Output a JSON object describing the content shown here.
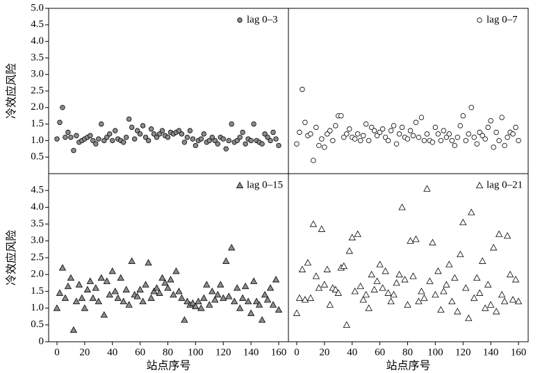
{
  "chart_data": [
    {
      "type": "scatter",
      "ylabel": "冷效应风险",
      "marker": "circle",
      "series": [
        {
          "name": "lag 0–3",
          "color": "#8c8c8c",
          "x": [
            0,
            2,
            4,
            6,
            8,
            10,
            12,
            14,
            16,
            18,
            20,
            22,
            24,
            26,
            28,
            30,
            32,
            34,
            36,
            38,
            40,
            42,
            44,
            46,
            48,
            50,
            52,
            54,
            56,
            58,
            60,
            62,
            64,
            66,
            68,
            70,
            72,
            74,
            76,
            78,
            80,
            82,
            84,
            86,
            88,
            90,
            92,
            94,
            96,
            98,
            100,
            102,
            104,
            106,
            108,
            110,
            112,
            114,
            116,
            118,
            120,
            122,
            124,
            126,
            128,
            130,
            132,
            134,
            136,
            138,
            140,
            142,
            144,
            146,
            148,
            150,
            152,
            154,
            156,
            158,
            160
          ],
          "values": [
            1.05,
            1.55,
            2.0,
            1.1,
            1.25,
            1.1,
            0.7,
            1.15,
            0.95,
            1.0,
            1.05,
            1.1,
            1.15,
            1.0,
            0.9,
            1.05,
            1.5,
            1.0,
            1.1,
            1.2,
            1.0,
            1.3,
            1.05,
            1.0,
            0.95,
            1.1,
            1.65,
            1.4,
            1.05,
            1.3,
            1.2,
            1.45,
            1.1,
            1.0,
            1.35,
            1.2,
            1.1,
            1.2,
            1.3,
            1.15,
            1.1,
            1.25,
            1.2,
            1.25,
            1.3,
            1.2,
            0.95,
            1.1,
            1.3,
            1.05,
            0.85,
            1.0,
            1.05,
            1.2,
            0.95,
            1.0,
            1.1,
            1.0,
            0.9,
            1.1,
            1.05,
            0.75,
            1.0,
            1.5,
            0.95,
            1.0,
            1.1,
            1.25,
            0.9,
            1.05,
            1.0,
            1.5,
            1.0,
            0.95,
            0.9,
            1.2,
            1.1,
            1.0,
            1.25,
            1.05,
            0.85
          ]
        }
      ],
      "xlim": [
        -6,
        167
      ],
      "ylim": [
        0,
        5
      ],
      "yticks": [
        0.5,
        {
          "value": 1,
          "label": "1.0"
        },
        1.5,
        {
          "value": 2,
          "label": "2.0"
        },
        2.5,
        {
          "value": 3,
          "label": "3.0"
        },
        3.5,
        {
          "value": 4,
          "label": "4.0"
        },
        4.5,
        {
          "value": 5,
          "label": "5.0"
        }
      ]
    },
    {
      "type": "scatter",
      "marker": "circle",
      "series": [
        {
          "name": "lag 0–7",
          "color": "#ffffff",
          "x": [
            0,
            2,
            4,
            6,
            8,
            10,
            12,
            14,
            16,
            18,
            20,
            22,
            24,
            26,
            28,
            30,
            32,
            34,
            36,
            38,
            40,
            42,
            44,
            46,
            48,
            50,
            52,
            54,
            56,
            58,
            60,
            62,
            64,
            66,
            68,
            70,
            72,
            74,
            76,
            78,
            80,
            82,
            84,
            86,
            88,
            90,
            92,
            94,
            96,
            98,
            100,
            102,
            104,
            106,
            108,
            110,
            112,
            114,
            116,
            118,
            120,
            122,
            124,
            126,
            128,
            130,
            132,
            134,
            136,
            138,
            140,
            142,
            144,
            146,
            148,
            150,
            152,
            154,
            156,
            158,
            160
          ],
          "values": [
            0.9,
            1.25,
            2.55,
            1.55,
            1.15,
            1.2,
            0.4,
            1.4,
            0.85,
            1.05,
            0.8,
            1.2,
            1.3,
            1.0,
            1.45,
            1.75,
            1.75,
            1.1,
            1.2,
            1.35,
            1.1,
            1.05,
            1.2,
            1.0,
            1.15,
            1.5,
            1.0,
            1.4,
            1.3,
            1.15,
            1.25,
            1.35,
            1.1,
            1.0,
            1.3,
            1.45,
            0.9,
            1.2,
            1.4,
            1.1,
            1.05,
            1.3,
            1.15,
            1.55,
            1.1,
            1.7,
            1.0,
            1.2,
            1.0,
            0.95,
            1.4,
            1.2,
            1.0,
            1.3,
            1.1,
            1.2,
            1.0,
            0.85,
            1.1,
            1.45,
            1.75,
            1.0,
            1.2,
            2.0,
            1.1,
            0.9,
            1.25,
            1.15,
            1.05,
            1.4,
            1.6,
            0.8,
            1.25,
            1.0,
            1.7,
            0.85,
            1.1,
            1.25,
            1.2,
            1.4,
            1.0
          ]
        }
      ],
      "xlim": [
        -6,
        167
      ],
      "ylim": [
        0,
        5
      ]
    },
    {
      "type": "scatter",
      "ylabel": "冷效应风险",
      "xlabel": "站点序号",
      "marker": "triangle",
      "series": [
        {
          "name": "lag 0–15",
          "color": "#8c8c8c",
          "x": [
            0,
            2,
            4,
            6,
            8,
            10,
            12,
            14,
            16,
            18,
            20,
            22,
            24,
            26,
            28,
            30,
            32,
            34,
            36,
            38,
            40,
            42,
            44,
            46,
            48,
            50,
            52,
            54,
            56,
            58,
            60,
            62,
            64,
            66,
            68,
            70,
            72,
            74,
            76,
            78,
            80,
            82,
            84,
            86,
            88,
            90,
            92,
            94,
            96,
            98,
            100,
            102,
            104,
            106,
            108,
            110,
            112,
            114,
            116,
            118,
            120,
            122,
            124,
            126,
            128,
            130,
            132,
            134,
            136,
            138,
            140,
            142,
            144,
            146,
            148,
            150,
            152,
            154,
            156,
            158,
            160
          ],
          "values": [
            1.0,
            1.45,
            2.2,
            1.3,
            1.65,
            1.9,
            0.35,
            1.2,
            1.7,
            1.3,
            1.0,
            1.55,
            1.8,
            1.3,
            1.6,
            1.2,
            1.9,
            0.8,
            1.8,
            1.4,
            2.1,
            1.5,
            1.3,
            1.9,
            1.2,
            1.55,
            1.1,
            2.4,
            1.4,
            1.35,
            1.55,
            1.2,
            1.7,
            2.35,
            1.3,
            1.5,
            1.6,
            1.45,
            1.9,
            1.75,
            1.6,
            1.85,
            1.4,
            2.1,
            1.5,
            1.3,
            0.65,
            1.2,
            1.1,
            1.15,
            1.05,
            1.2,
            1.0,
            1.3,
            1.7,
            1.1,
            1.5,
            1.25,
            1.4,
            1.7,
            1.3,
            2.4,
            1.35,
            2.8,
            1.2,
            1.6,
            1.0,
            1.3,
            1.65,
            1.2,
            0.85,
            1.8,
            1.2,
            1.1,
            0.65,
            1.4,
            1.25,
            1.6,
            1.1,
            1.85,
            0.95
          ]
        }
      ],
      "xlim": [
        -6,
        167
      ],
      "ylim": [
        0,
        5
      ],
      "xticks": [
        0,
        20,
        40,
        60,
        80,
        100,
        120,
        140,
        160
      ],
      "yticks": [
        0,
        0.5,
        {
          "value": 1,
          "label": "1.0"
        },
        1.5,
        {
          "value": 2,
          "label": "2.0"
        },
        2.5,
        {
          "value": 3,
          "label": "3.0"
        },
        3.5,
        {
          "value": 4,
          "label": "4.0"
        },
        4.5
      ]
    },
    {
      "type": "scatter",
      "xlabel": "站点序号",
      "marker": "triangle",
      "series": [
        {
          "name": "lag 0–21",
          "color": "#ffffff",
          "x": [
            0,
            2,
            4,
            6,
            8,
            10,
            12,
            14,
            16,
            18,
            20,
            22,
            24,
            26,
            28,
            30,
            32,
            34,
            36,
            38,
            40,
            42,
            44,
            46,
            48,
            50,
            52,
            54,
            56,
            58,
            60,
            62,
            64,
            66,
            68,
            70,
            72,
            74,
            76,
            78,
            80,
            82,
            84,
            86,
            88,
            90,
            92,
            94,
            96,
            98,
            100,
            102,
            104,
            106,
            108,
            110,
            112,
            114,
            116,
            118,
            120,
            122,
            124,
            126,
            128,
            130,
            132,
            134,
            136,
            138,
            140,
            142,
            144,
            146,
            148,
            150,
            152,
            154,
            156,
            158,
            160
          ],
          "values": [
            0.85,
            1.3,
            2.15,
            1.25,
            2.35,
            1.3,
            3.5,
            1.95,
            1.6,
            3.35,
            1.7,
            2.15,
            1.1,
            1.6,
            1.55,
            1.45,
            2.2,
            2.25,
            0.5,
            2.7,
            3.1,
            1.5,
            3.2,
            1.65,
            1.25,
            1.4,
            1.0,
            2.0,
            1.55,
            1.8,
            2.3,
            1.6,
            2.1,
            1.45,
            1.2,
            1.4,
            1.75,
            2.0,
            4.0,
            1.85,
            1.1,
            3.0,
            1.95,
            3.05,
            1.2,
            1.5,
            1.3,
            4.55,
            1.8,
            2.95,
            1.4,
            2.1,
            0.95,
            1.5,
            1.7,
            2.3,
            1.2,
            1.9,
            0.9,
            2.6,
            3.55,
            1.6,
            0.7,
            3.85,
            1.3,
            1.9,
            1.45,
            2.4,
            1.0,
            1.7,
            1.1,
            2.8,
            0.9,
            3.2,
            1.4,
            1.2,
            3.15,
            2.0,
            1.25,
            1.85,
            1.2
          ]
        }
      ],
      "xlim": [
        -6,
        167
      ],
      "ylim": [
        0,
        5
      ],
      "xticks": [
        0,
        20,
        40,
        60,
        80,
        100,
        120,
        140,
        160
      ]
    }
  ]
}
